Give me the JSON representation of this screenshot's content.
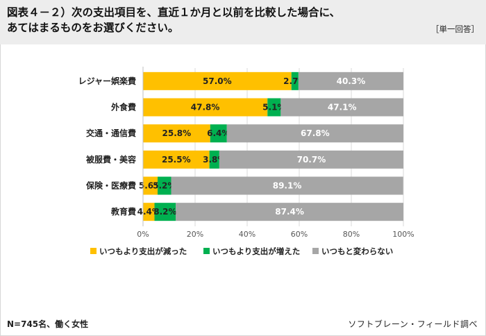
{
  "header": {
    "title_line1": "図表４－２）次の支出項目を、直近１か月と以前を比較した場合に、",
    "title_line2": "あてはまるものをお選びください。",
    "answer_type": "［単一回答］"
  },
  "footer": {
    "sample": "N=745名、働く女性",
    "source": "ソフトブレーン・フィールド調べ"
  },
  "chart_data": {
    "type": "bar",
    "orientation": "horizontal",
    "stacked": true,
    "percent_stacked": true,
    "categories": [
      "レジャー娯楽費",
      "外食費",
      "交通・通信費",
      "被服費・美容",
      "保険・医療費",
      "教育費"
    ],
    "series": [
      {
        "name": "いつもより支出が減った",
        "values": [
          57.0,
          47.8,
          25.8,
          25.5,
          5.6,
          4.4
        ]
      },
      {
        "name": "いつもより支出が増えた",
        "values": [
          2.7,
          5.1,
          6.4,
          3.8,
          5.2,
          8.2
        ]
      },
      {
        "name": "いつもと変わらない",
        "values": [
          40.3,
          47.1,
          67.8,
          70.7,
          89.1,
          87.4
        ]
      }
    ],
    "colors": [
      "#FFC000",
      "#00B050",
      "#A6A6A6"
    ],
    "xlim": [
      0,
      100
    ],
    "xticks": [
      "0%",
      "20%",
      "40%",
      "60%",
      "80%",
      "100%"
    ],
    "legend_position": "bottom",
    "grid": true
  }
}
